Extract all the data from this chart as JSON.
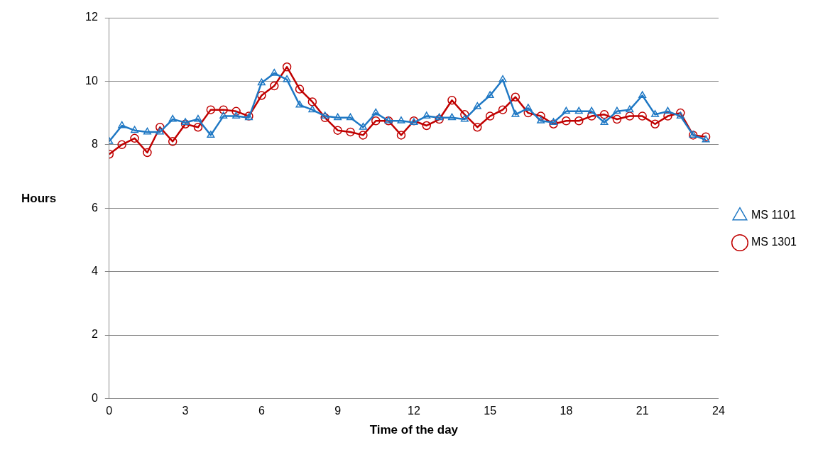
{
  "chart_data": {
    "type": "line",
    "xlabel": "Time of the day",
    "ylabel": "Hours",
    "x": [
      0,
      0.5,
      1,
      1.5,
      2,
      2.5,
      3,
      3.5,
      4,
      4.5,
      5,
      5.5,
      6,
      6.5,
      7,
      7.5,
      8,
      8.5,
      9,
      9.5,
      10,
      10.5,
      11,
      11.5,
      12,
      12.5,
      13,
      13.5,
      14,
      14.5,
      15,
      15.5,
      16,
      16.5,
      17,
      17.5,
      18,
      18.5,
      19,
      19.5,
      20,
      20.5,
      21,
      21.5,
      22,
      22.5,
      23,
      23.5
    ],
    "series": [
      {
        "name": "MS 1101",
        "color": "#1f78c4",
        "marker": "triangle",
        "values": [
          8.1,
          8.6,
          8.45,
          8.4,
          8.4,
          8.8,
          8.7,
          8.8,
          8.3,
          8.9,
          8.9,
          8.85,
          9.95,
          10.25,
          10.05,
          9.25,
          9.1,
          8.9,
          8.85,
          8.85,
          8.55,
          9.0,
          8.75,
          8.75,
          8.7,
          8.9,
          8.85,
          8.85,
          8.8,
          9.2,
          9.55,
          10.05,
          8.95,
          9.15,
          8.75,
          8.7,
          9.05,
          9.05,
          9.05,
          8.7,
          9.05,
          9.1,
          9.55,
          8.95,
          9.05,
          8.9,
          8.3,
          8.15
        ]
      },
      {
        "name": "MS 1301",
        "color": "#c00000",
        "marker": "circle",
        "values": [
          7.7,
          8.0,
          8.2,
          7.75,
          8.55,
          8.1,
          8.65,
          8.55,
          9.1,
          9.1,
          9.05,
          8.9,
          9.55,
          9.85,
          10.45,
          9.75,
          9.35,
          8.85,
          8.45,
          8.4,
          8.3,
          8.75,
          8.75,
          8.3,
          8.75,
          8.6,
          8.8,
          9.4,
          8.95,
          8.55,
          8.9,
          9.1,
          9.5,
          9.0,
          8.9,
          8.65,
          8.75,
          8.75,
          8.9,
          8.95,
          8.8,
          8.9,
          8.9,
          8.65,
          8.9,
          9.0,
          8.3,
          8.25
        ]
      }
    ],
    "xlim": [
      0,
      24
    ],
    "xticks": [
      0,
      3,
      6,
      9,
      12,
      15,
      18,
      21,
      24
    ],
    "ylim": [
      0,
      12
    ],
    "yticks": [
      0,
      2,
      4,
      6,
      8,
      10,
      12
    ],
    "grid": "y",
    "legend": "right",
    "line_style": "solid"
  }
}
